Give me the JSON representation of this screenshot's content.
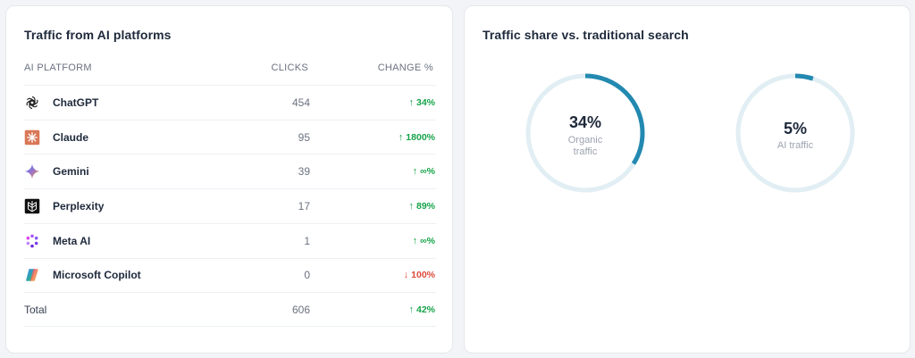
{
  "left_card": {
    "title": "Traffic from AI platforms",
    "headers": {
      "platform": "AI PLATFORM",
      "clicks": "CLICKS",
      "change": "CHANGE %"
    },
    "rows": [
      {
        "name": "ChatGPT",
        "icon": "chatgpt-logo-icon",
        "clicks": "454",
        "arrow": "↑",
        "change": "34%",
        "direction": "up"
      },
      {
        "name": "Claude",
        "icon": "claude-logo-icon",
        "clicks": "95",
        "arrow": "↑",
        "change": "1800%",
        "direction": "up"
      },
      {
        "name": "Gemini",
        "icon": "gemini-logo-icon",
        "clicks": "39",
        "arrow": "↑",
        "change": "∞%",
        "direction": "up"
      },
      {
        "name": "Perplexity",
        "icon": "perplexity-logo-icon",
        "clicks": "17",
        "arrow": "↑",
        "change": "89%",
        "direction": "up"
      },
      {
        "name": "Meta AI",
        "icon": "meta-ai-logo-icon",
        "clicks": "1",
        "arrow": "↑",
        "change": "∞%",
        "direction": "up"
      },
      {
        "name": "Microsoft Copilot",
        "icon": "copilot-logo-icon",
        "clicks": "0",
        "arrow": "↓",
        "change": "100%",
        "direction": "down"
      }
    ],
    "total": {
      "label": "Total",
      "clicks": "606",
      "arrow": "↑",
      "change": "42%",
      "direction": "up"
    }
  },
  "right_card": {
    "title": "Traffic share vs. traditional search",
    "donuts": [
      {
        "value_text": "34%",
        "fraction": 0.34,
        "label": "Organic traffic"
      },
      {
        "value_text": "5%",
        "fraction": 0.05,
        "label": "AI traffic"
      }
    ]
  },
  "colors": {
    "up": "#16a34a",
    "down": "#dc4a3a",
    "donut_fill": "#2389b1",
    "donut_track": "#e1eef3"
  }
}
